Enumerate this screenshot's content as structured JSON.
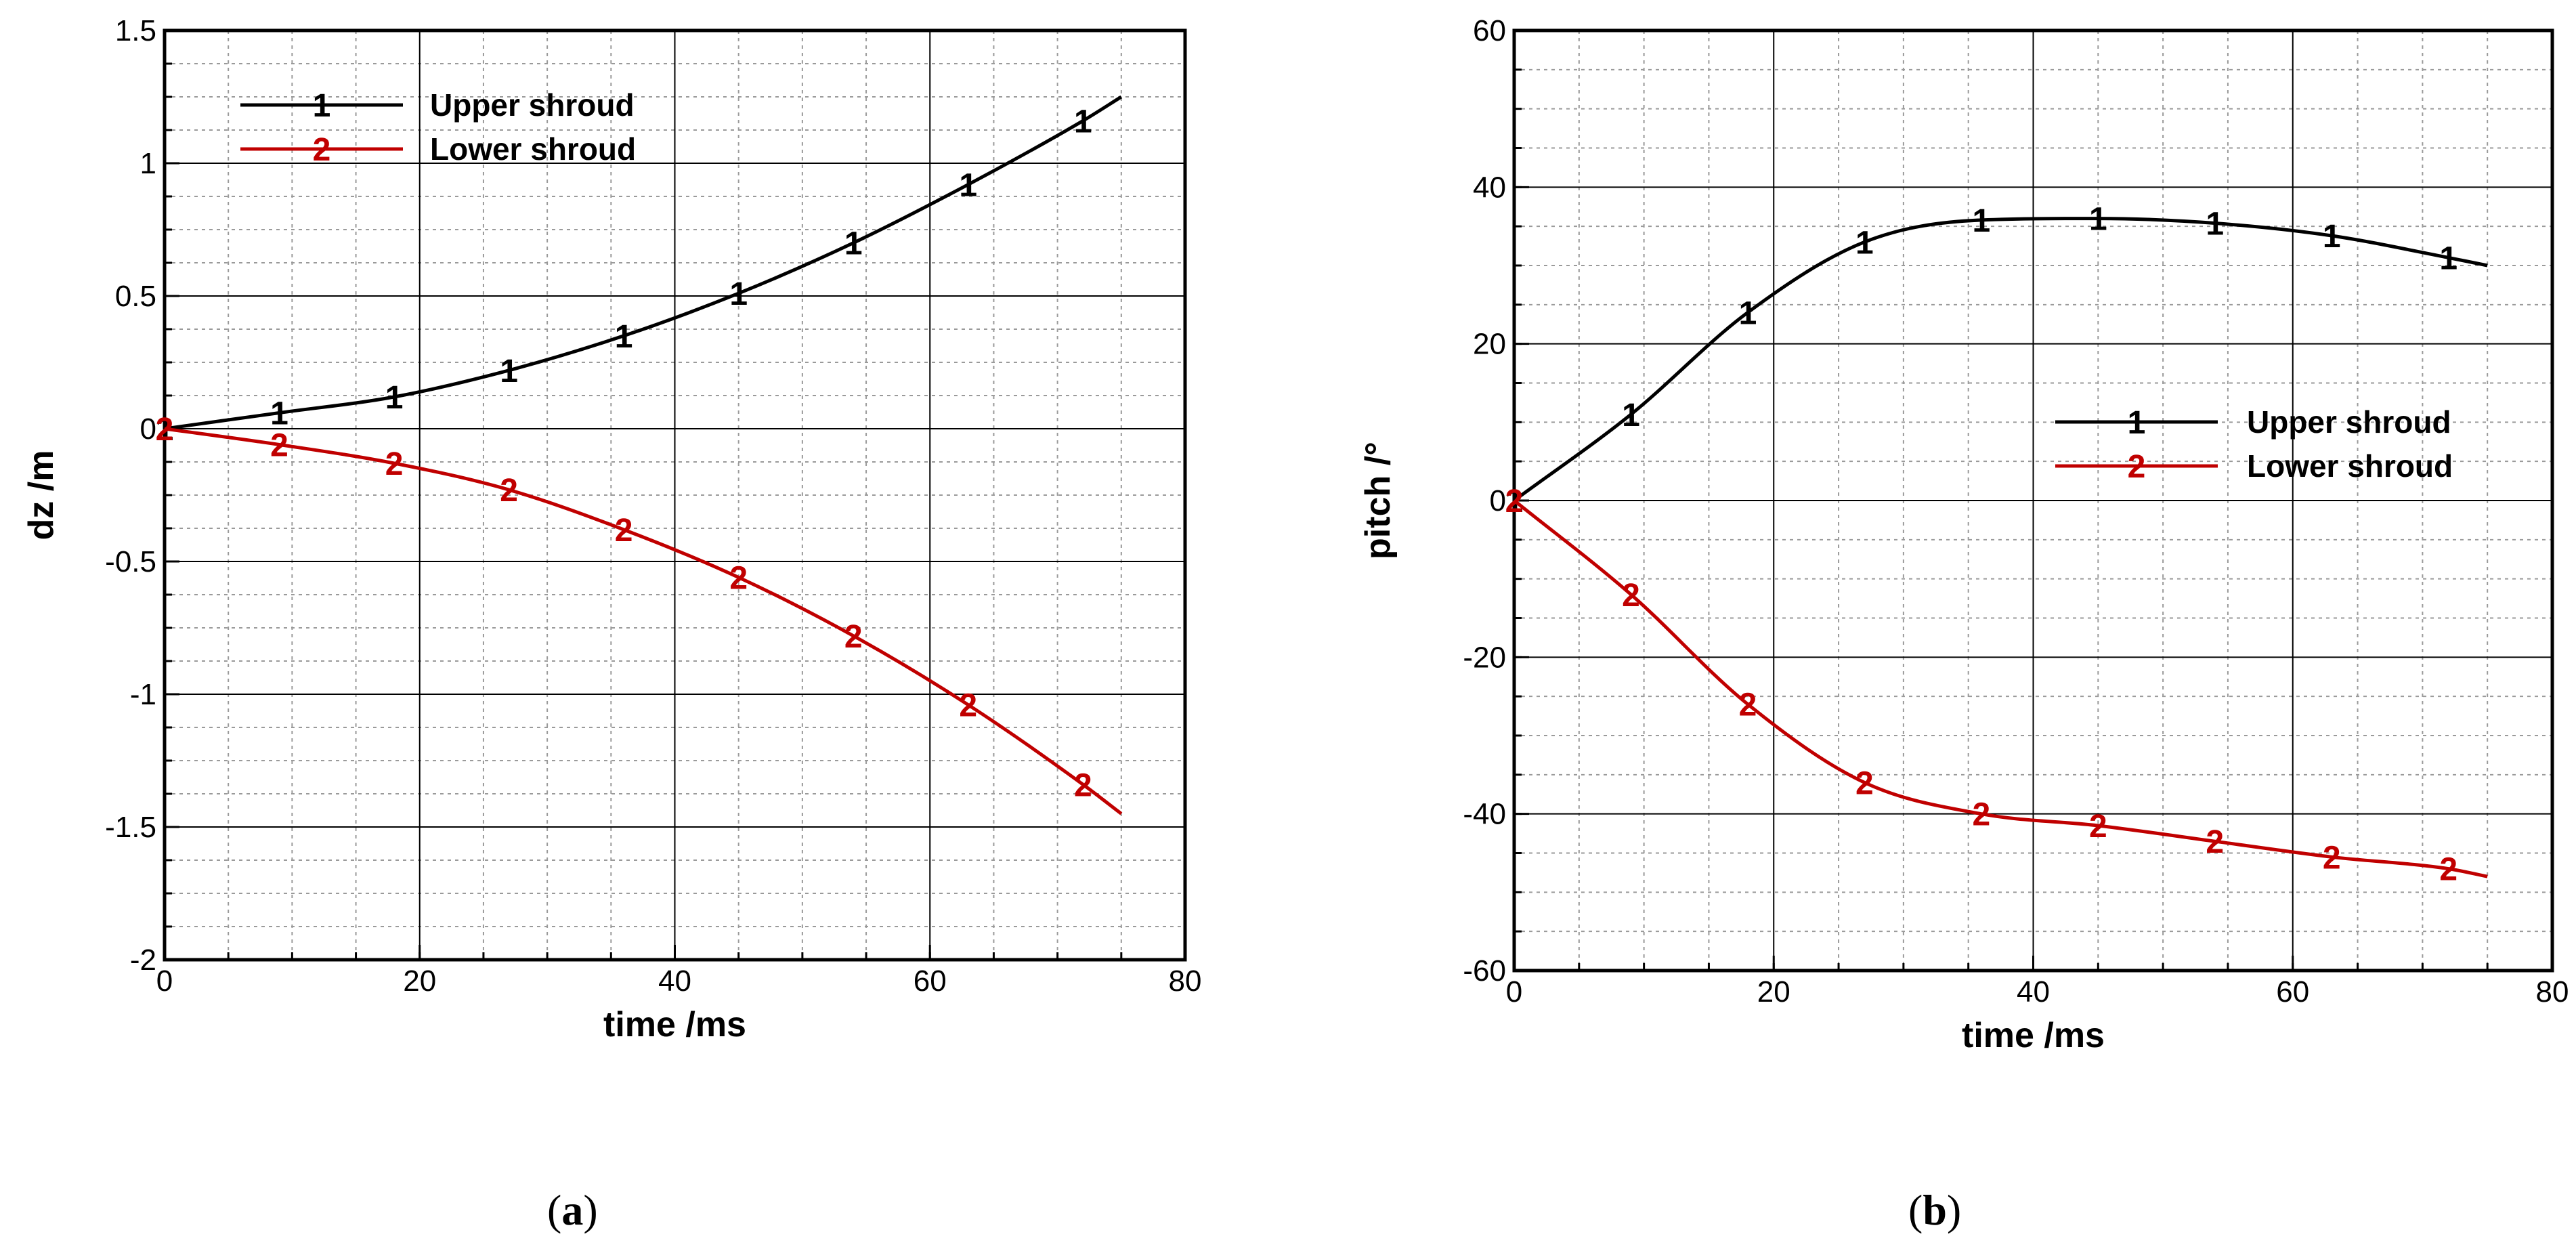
{
  "chart_data": [
    {
      "type": "line",
      "panel_label": "a",
      "xlabel": "time /ms",
      "ylabel": "dz /m",
      "xlim": [
        0,
        80
      ],
      "ylim": [
        -2,
        1.5
      ],
      "xticks": [
        "0",
        "20",
        "40",
        "60",
        "80"
      ],
      "yticks": [
        "-2",
        "-1.5",
        "-1",
        "-0.5",
        "0",
        "0.5",
        "1",
        "1.5"
      ],
      "xtick_values": [
        0,
        20,
        40,
        60,
        80
      ],
      "ytick_values": [
        -2,
        -1.5,
        -1,
        -0.5,
        0,
        0.5,
        1,
        1.5
      ],
      "grid": true,
      "legend_position": "top-left",
      "series": [
        {
          "name": "Upper shroud",
          "marker": "1",
          "color": "#000000",
          "x": [
            0,
            9,
            18,
            27,
            36,
            45,
            54,
            63,
            72,
            75
          ],
          "y": [
            0,
            0.06,
            0.12,
            0.22,
            0.35,
            0.51,
            0.7,
            0.92,
            1.16,
            1.25
          ]
        },
        {
          "name": "Lower shroud",
          "marker": "2",
          "color": "#c00000",
          "x": [
            0,
            9,
            18,
            27,
            36,
            45,
            54,
            63,
            72,
            75
          ],
          "y": [
            0,
            -0.06,
            -0.13,
            -0.23,
            -0.38,
            -0.56,
            -0.78,
            -1.04,
            -1.34,
            -1.45
          ]
        }
      ]
    },
    {
      "type": "line",
      "panel_label": "b",
      "xlabel": "time /ms",
      "ylabel": "pitch /°",
      "xlim": [
        0,
        80
      ],
      "ylim": [
        -60,
        60
      ],
      "xticks": [
        "0",
        "20",
        "40",
        "60",
        "80"
      ],
      "yticks": [
        "-60",
        "-40",
        "-20",
        "0",
        "20",
        "40",
        "60"
      ],
      "xtick_values": [
        0,
        20,
        40,
        60,
        80
      ],
      "ytick_values": [
        -60,
        -40,
        -20,
        0,
        20,
        40,
        60
      ],
      "grid": true,
      "legend_position": "center-right",
      "series": [
        {
          "name": "Upper shroud",
          "marker": "1",
          "color": "#000000",
          "x": [
            0,
            9,
            18,
            27,
            36,
            45,
            54,
            63,
            72,
            75
          ],
          "y": [
            0,
            11,
            24,
            33,
            35.8,
            36,
            35.4,
            33.8,
            31,
            30
          ]
        },
        {
          "name": "Lower shroud",
          "marker": "2",
          "color": "#c00000",
          "x": [
            0,
            9,
            18,
            27,
            36,
            45,
            54,
            63,
            72,
            75
          ],
          "y": [
            0,
            -12,
            -26,
            -36,
            -40,
            -41.5,
            -43.5,
            -45.5,
            -47,
            -48
          ]
        }
      ]
    }
  ]
}
